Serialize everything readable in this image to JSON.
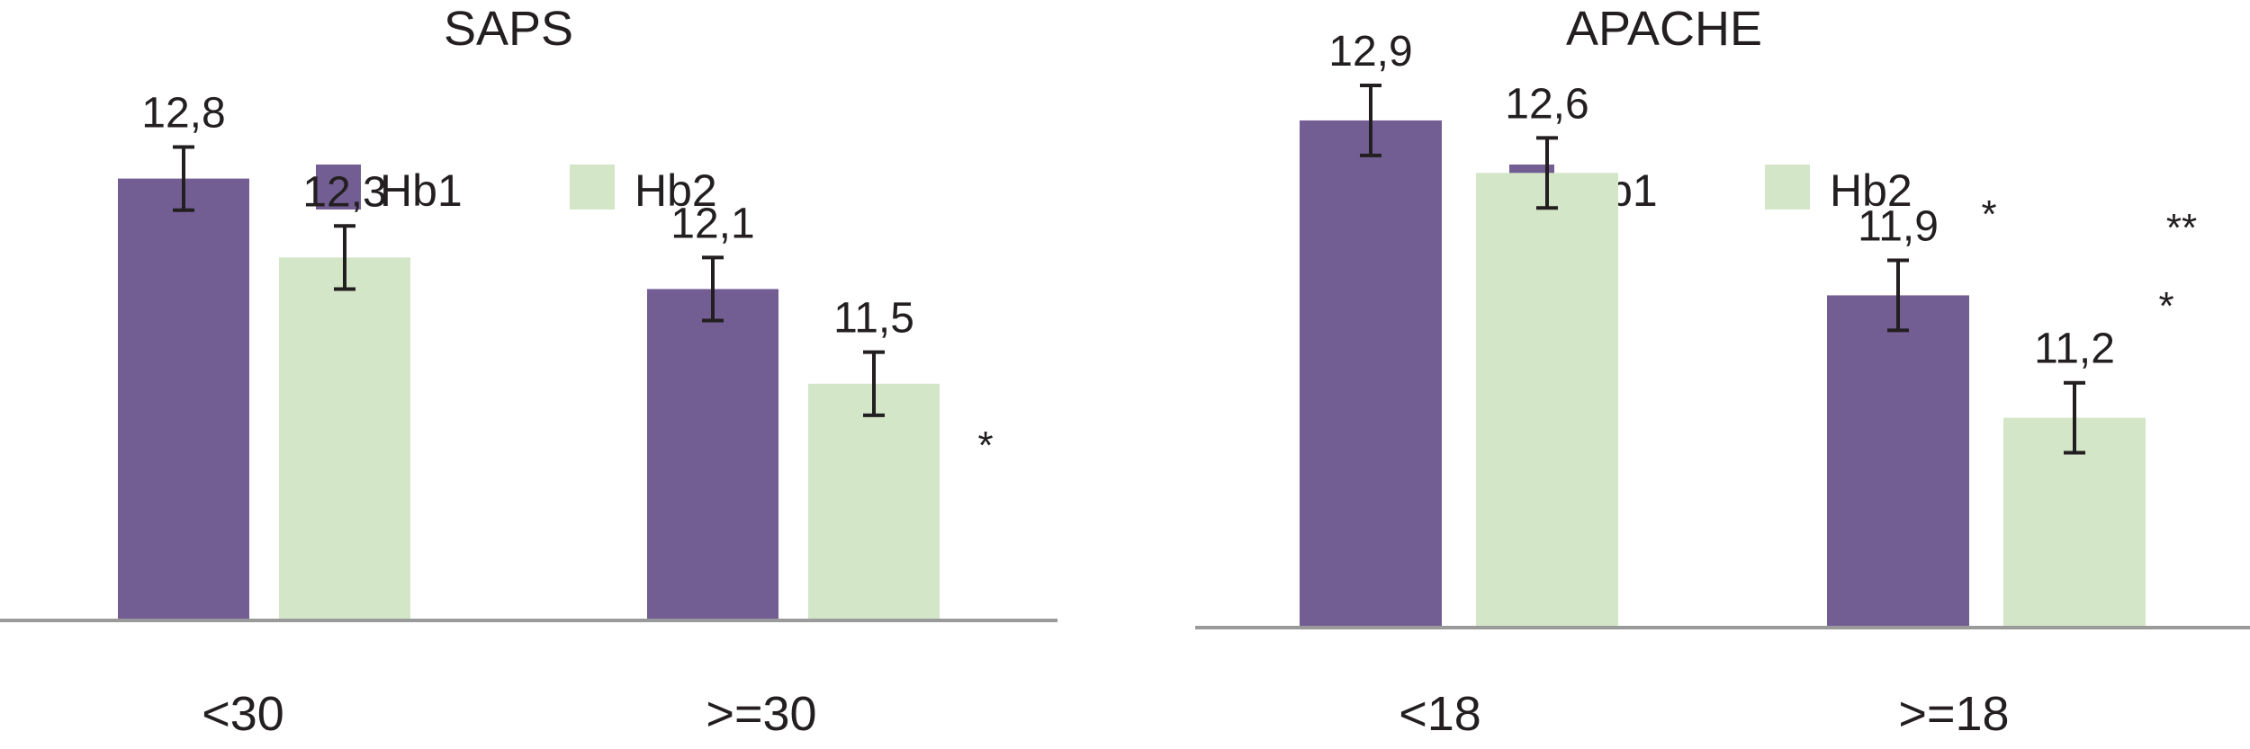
{
  "colors": {
    "hb1": "#735e93",
    "hb2": "#d3e6c7",
    "axis": "#9a9a9a",
    "text": "#231f20",
    "error": "#231f20"
  },
  "chart_data": [
    {
      "type": "bar",
      "title": "SAPS",
      "categories": [
        "<30",
        ">=30"
      ],
      "series": [
        {
          "name": "Hb1",
          "values": [
            12.8,
            12.1
          ],
          "labels": [
            "12,8",
            "12,1"
          ],
          "errors": [
            0.2,
            0.2
          ]
        },
        {
          "name": "Hb2",
          "values": [
            12.3,
            11.5
          ],
          "labels": [
            "12,3",
            "11,5"
          ],
          "errors": [
            0.2,
            0.2
          ]
        }
      ],
      "annotations": [
        {
          "category": ">=30",
          "text": "*"
        }
      ],
      "legend": "top-center",
      "ylim": [
        10,
        15
      ],
      "grid": false
    },
    {
      "type": "bar",
      "title": "APACHE",
      "categories": [
        "<18",
        ">=18"
      ],
      "series": [
        {
          "name": "Hb1",
          "values": [
            12.9,
            11.9
          ],
          "labels": [
            "12,9",
            "11,9"
          ],
          "errors": [
            0.2,
            0.2
          ]
        },
        {
          "name": "Hb2",
          "values": [
            12.6,
            11.2
          ],
          "labels": [
            "12,6",
            "11,2"
          ],
          "errors": [
            0.2,
            0.2
          ]
        }
      ],
      "annotations": [
        {
          "category": ">=18",
          "text": "*"
        },
        {
          "category": ">=18",
          "text": "**"
        },
        {
          "category": ">=18",
          "text": "*"
        }
      ],
      "legend": "top-center",
      "ylim": [
        10,
        15
      ],
      "grid": false
    }
  ]
}
